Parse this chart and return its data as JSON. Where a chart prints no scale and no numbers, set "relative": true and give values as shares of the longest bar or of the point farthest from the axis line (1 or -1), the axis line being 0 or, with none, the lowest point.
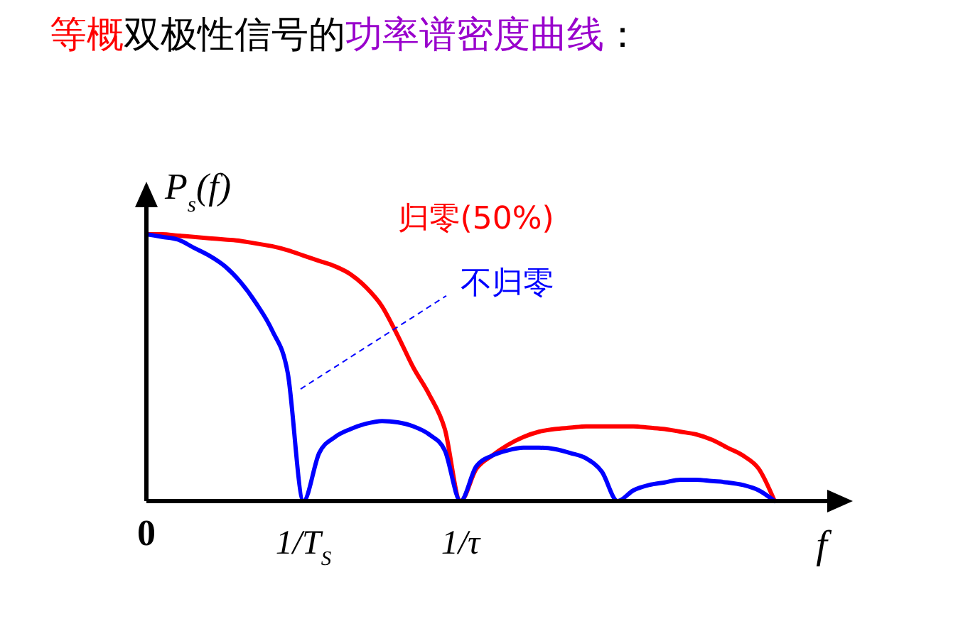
{
  "chart_data": {
    "type": "line",
    "title": "等概双极性信号的功率谱密度曲线：",
    "xlabel": "f",
    "ylabel": "P$_{s}$(f)",
    "relative": true,
    "categories": [
      "0",
      null,
      null,
      null,
      null,
      null,
      null,
      null,
      null,
      null,
      "1/T$_{S}$",
      null,
      null,
      null,
      null,
      null,
      null,
      null,
      null,
      null,
      "1/τ",
      null,
      null,
      null,
      null,
      null,
      null,
      null,
      null,
      null,
      null,
      null,
      null,
      null,
      null,
      null,
      null,
      null,
      null,
      null,
      null
    ],
    "series": [
      {
        "name": "归零(50%)",
        "color": "#ff0000",
        "values": [
          1,
          1,
          0.995,
          0.99,
          0.985,
          0.98,
          0.975,
          0.965,
          0.955,
          0.94,
          0.92,
          0.9,
          0.88,
          0.85,
          0.8,
          0.73,
          0.62,
          0.5,
          0.4,
          0.27,
          0,
          0.12,
          0.17,
          0.21,
          0.24,
          0.26,
          0.27,
          0.275,
          0.28,
          0.28,
          0.28,
          0.28,
          0.275,
          0.27,
          0.26,
          0.25,
          0.23,
          0.2,
          0.17,
          0.12,
          0
        ]
      },
      {
        "name": "不归零",
        "color": "#0000ff",
        "values": [
          1,
          0.99,
          0.98,
          0.95,
          0.92,
          0.88,
          0.82,
          0.74,
          0.64,
          0.48,
          0,
          0.18,
          0.24,
          0.27,
          0.29,
          0.3,
          0.295,
          0.28,
          0.25,
          0.19,
          0,
          0.13,
          0.17,
          0.19,
          0.2,
          0.2,
          0.195,
          0.18,
          0.16,
          0.11,
          0,
          0.04,
          0.06,
          0.07,
          0.08,
          0.08,
          0.075,
          0.07,
          0.06,
          0.04,
          0
        ]
      }
    ]
  }
}
